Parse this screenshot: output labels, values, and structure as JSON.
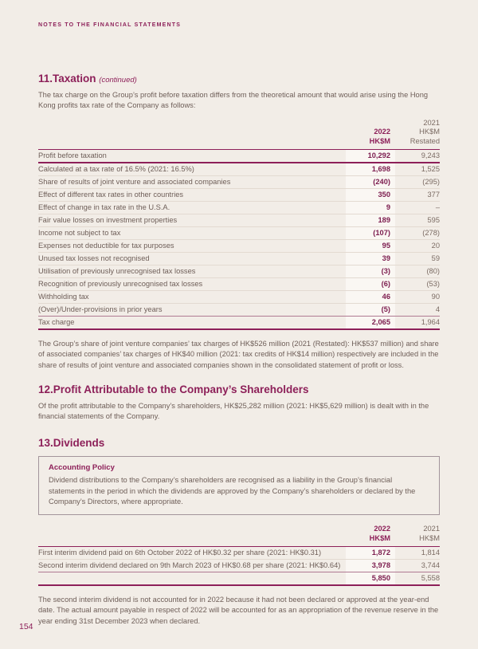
{
  "page": {
    "header": "NOTES TO THE FINANCIAL STATEMENTS",
    "page_number": "154"
  },
  "colors": {
    "accent_purple": "#8D2059",
    "value_2022_purple": "#7C1C4E",
    "body_text": "#6E5E58",
    "muted_2021_text": "#7B6B63",
    "page_background": "#F2EDE7",
    "column_2022_highlight": "#FAF7F3",
    "row_separator": "#E3DAD1",
    "box_border": "#A3949B"
  },
  "section11": {
    "title": "11.Taxation",
    "continued": "(continued)",
    "intro": "The tax charge on the Group’s profit before taxation differs from the theoretical amount that would arise using the Hong Kong profits tax rate of the Company as follows:",
    "table": {
      "head": {
        "c2022": [
          "2022",
          "HK$M"
        ],
        "c2021": [
          "2021",
          "HK$M",
          "Restated"
        ]
      },
      "rows": [
        {
          "label": "Profit before taxation",
          "v2022": "10,292",
          "v2021": "9,243"
        },
        {
          "label": "Calculated at a tax rate of 16.5% (2021: 16.5%)",
          "v2022": "1,698",
          "v2021": "1,525"
        },
        {
          "label": "Share of results of joint venture and associated companies",
          "v2022": "(240)",
          "v2021": "(295)"
        },
        {
          "label": "Effect of different tax rates in other countries",
          "v2022": "350",
          "v2021": "377"
        },
        {
          "label": "Effect of change in tax rate in the U.S.A.",
          "v2022": "9",
          "v2021": "–"
        },
        {
          "label": "Fair value losses on investment properties",
          "v2022": "189",
          "v2021": "595"
        },
        {
          "label": "Income not subject to tax",
          "v2022": "(107)",
          "v2021": "(278)"
        },
        {
          "label": "Expenses not deductible for tax purposes",
          "v2022": "95",
          "v2021": "20"
        },
        {
          "label": "Unused tax losses not recognised",
          "v2022": "39",
          "v2021": "59"
        },
        {
          "label": "Utilisation of previously unrecognised tax losses",
          "v2022": "(3)",
          "v2021": "(80)"
        },
        {
          "label": "Recognition of previously unrecognised tax losses",
          "v2022": "(6)",
          "v2021": "(53)"
        },
        {
          "label": "Withholding tax",
          "v2022": "46",
          "v2021": "90"
        },
        {
          "label": "(Over)/Under-provisions in prior years",
          "v2022": "(5)",
          "v2021": "4"
        }
      ],
      "total": {
        "label": "Tax charge",
        "v2022": "2,065",
        "v2021": "1,964"
      }
    },
    "footnote": "The Group’s share of joint venture companies’ tax charges of HK$526 million (2021 (Restated): HK$537 million) and share of associated companies’ tax charges of HK$40 million (2021: tax credits of HK$14 million) respectively are included in the share of results of joint venture and associated companies shown in the consolidated statement of profit or loss."
  },
  "section12": {
    "title": "12.Profit Attributable to the Company’s Shareholders",
    "body": "Of the profit attributable to the Company’s shareholders, HK$25,282  million (2021: HK$5,629 million) is dealt with in the financial statements of the Company."
  },
  "section13": {
    "title": "13.Dividends",
    "policy_title": "Accounting Policy",
    "policy_body": "Dividend distributions to the Company’s shareholders are recognised as a liability in the Group’s financial statements in the period in which the dividends are approved by the Company’s shareholders or declared by the Company’s Directors, where appropriate.",
    "table": {
      "head": {
        "c2022": [
          "2022",
          "HK$M"
        ],
        "c2021": [
          "2021",
          "HK$M"
        ]
      },
      "rows": [
        {
          "label": "First interim dividend paid on 6th October 2022 of HK$0.32 per share (2021: HK$0.31)",
          "v2022": "1,872",
          "v2021": "1,814"
        },
        {
          "label": "Second interim dividend declared on 9th March 2023 of HK$0.68 per share (2021: HK$0.64)",
          "v2022": "3,978",
          "v2021": "3,744"
        }
      ],
      "total": {
        "label": "",
        "v2022": "5,850",
        "v2021": "5,558"
      }
    },
    "footnote": "The second interim dividend is not accounted for in 2022 because it had not been declared or approved at the year-end date. The actual amount payable in respect of 2022 will be accounted for as an appropriation of the revenue reserve in the year ending 31st December 2023 when declared."
  }
}
